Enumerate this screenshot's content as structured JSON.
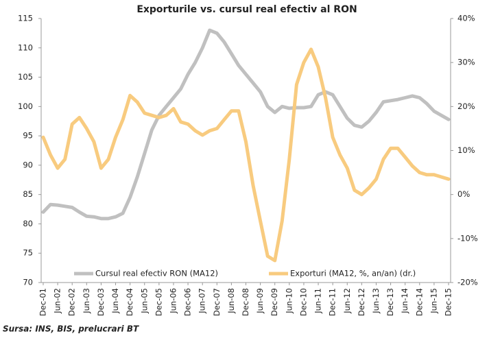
{
  "chart_data": {
    "type": "line",
    "title": "Exporturile vs. cursul real efectiv al RON",
    "source": "Sursa: INS, BIS, prelucrari BT",
    "categories": [
      "Dec-01",
      null,
      "Jun-02",
      null,
      "Dec-02",
      null,
      "Jun-03",
      null,
      "Dec-03",
      null,
      "Jun-04",
      null,
      "Dec-04",
      null,
      "Jun-05",
      null,
      "Dec-05",
      null,
      "Jun-06",
      null,
      "Dec-06",
      null,
      "Jun-07",
      null,
      "Dec-07",
      null,
      "Jun-08",
      null,
      "Dec-08",
      null,
      "Jun-09",
      null,
      "Dec-09",
      null,
      "Jun-10",
      null,
      "Dec-10",
      null,
      "Jun-11",
      null,
      "Dec-11",
      null,
      "Jun-12",
      null,
      "Dec-12",
      null,
      "Jun-13",
      null,
      "Dec-13",
      null,
      "Jun-14",
      null,
      "Dec-14",
      null,
      "Jun-15",
      null,
      "Dec-15"
    ],
    "series": [
      {
        "name": "Cursul real efectiv RON (MA12)",
        "color": "#c0c0c0",
        "axis": "y",
        "values": [
          82,
          83.3,
          83.2,
          83,
          82.8,
          82,
          81.3,
          81.2,
          80.9,
          80.9,
          81.2,
          81.8,
          84.5,
          88,
          92,
          96,
          98.5,
          100,
          101.5,
          103,
          105.5,
          107.5,
          110,
          113,
          112.5,
          111,
          109,
          107,
          105.5,
          104,
          102.5,
          100,
          99,
          100,
          99.7,
          99.8,
          99.8,
          100,
          102,
          102.5,
          102,
          100,
          98,
          96.8,
          96.5,
          97.5,
          99,
          100.8,
          101,
          101.2,
          101.5,
          101.8,
          101.5,
          100.5,
          99.2,
          98.5,
          97.8
        ]
      },
      {
        "name": "Exporturi (MA12, %, an/an) (dr.)",
        "color": "#f8cb7f",
        "axis": "y2",
        "values": [
          13,
          9,
          6,
          8,
          16,
          17.5,
          15,
          12,
          6,
          8,
          13,
          17,
          22.5,
          21,
          18.5,
          18,
          17.5,
          18,
          19.5,
          16.5,
          16,
          14.5,
          13.5,
          14.5,
          15,
          17,
          19,
          19,
          12,
          2,
          -6,
          -14,
          -15,
          -6,
          8,
          25,
          30,
          33,
          29,
          22,
          13,
          9,
          6,
          1,
          0,
          1.5,
          3.5,
          8,
          10.5,
          10.5,
          8.5,
          6.5,
          5,
          4.5,
          4.5,
          4,
          3.5
        ]
      }
    ],
    "ylim": [
      70,
      115
    ],
    "yticks": [
      70,
      75,
      80,
      85,
      90,
      95,
      100,
      105,
      110,
      115
    ],
    "y2lim": [
      -20,
      40
    ],
    "y2ticks": [
      {
        "value": -20,
        "label": "-20%"
      },
      {
        "value": -10,
        "label": "-10%"
      },
      {
        "value": 0,
        "label": "0%"
      },
      {
        "value": 10,
        "label": "10%"
      },
      {
        "value": 20,
        "label": "20%"
      },
      {
        "value": 30,
        "label": "30%"
      },
      {
        "value": 40,
        "label": "40%"
      }
    ],
    "grid": false,
    "legend": "bottom"
  }
}
